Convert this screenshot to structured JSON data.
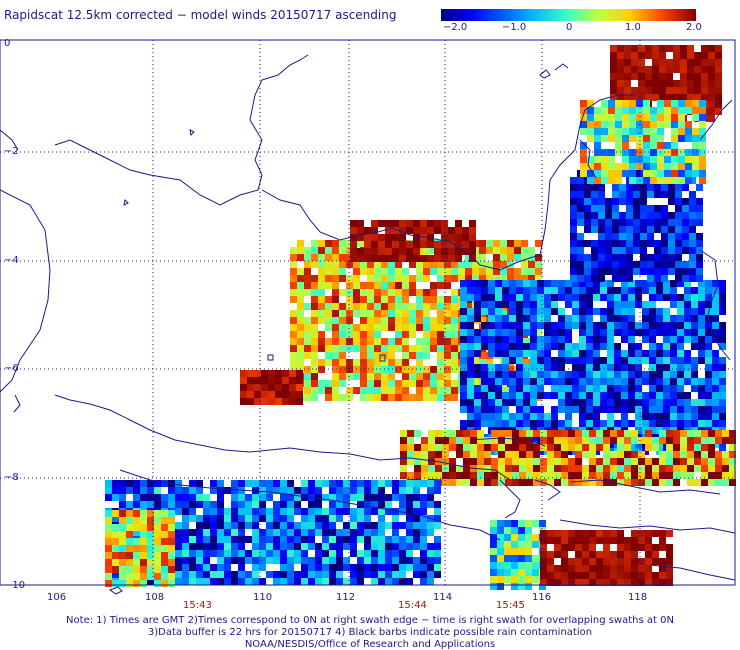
{
  "title": "Rapidscat 12.5km corrected − model winds 20150717 ascending",
  "colorbar": {
    "ticks": [
      "−2.0",
      "−1.0",
      "0",
      "1.0",
      "2.0"
    ],
    "range": [
      -2.0,
      2.0
    ]
  },
  "axes": {
    "lon_ticks": [
      "106",
      "108",
      "110",
      "112",
      "114",
      "116",
      "118"
    ],
    "lat_ticks": [
      "0",
      "−2",
      "−4",
      "−6",
      "−8",
      "−10"
    ]
  },
  "swath_times": [
    "15:43",
    "15:44",
    "15:45"
  ],
  "notes": [
    "Note: 1) Times are GMT 2)Times correspond to 0N at right swath edge − time is right swath for overlapping swaths at 0N",
    "3)Data buffer is 22 hrs for 20150717 4) Black barbs indicate possible rain contamination",
    "NOAA/NESDIS/Office of Research and Applications"
  ],
  "colors": {
    "text": "#1a1a8c",
    "time_text": "#8b1a1a",
    "coast": "#1a1a8c",
    "grid": "#1a1a8c"
  }
}
